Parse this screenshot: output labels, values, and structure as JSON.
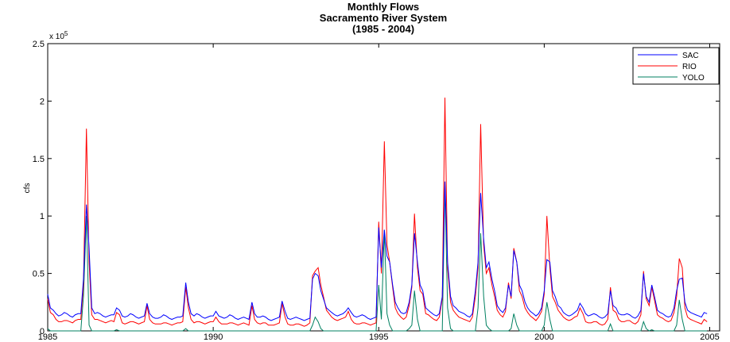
{
  "chart_data": {
    "type": "line",
    "title_lines": [
      "Monthly Flows",
      "Sacramento River System",
      "(1985 - 2004)"
    ],
    "y_label": "cfs",
    "y_multiplier": {
      "base": "x 10",
      "exponent": "5"
    },
    "xlim": [
      1985,
      2005.3
    ],
    "xticks": [
      1985,
      1990,
      1995,
      2000,
      2005
    ],
    "ylim": [
      0,
      2.5
    ],
    "yticks": [
      0,
      0.5,
      1,
      1.5,
      2,
      2.5
    ],
    "legend": "top-right",
    "grid": false,
    "x": [
      1985,
      1985.08,
      1985.17,
      1985.25,
      1985.33,
      1985.42,
      1985.5,
      1985.58,
      1985.67,
      1985.75,
      1985.83,
      1985.92,
      1986,
      1986.08,
      1986.17,
      1986.25,
      1986.33,
      1986.42,
      1986.5,
      1986.58,
      1986.67,
      1986.75,
      1986.83,
      1986.92,
      1987,
      1987.08,
      1987.17,
      1987.25,
      1987.33,
      1987.42,
      1987.5,
      1987.58,
      1987.67,
      1987.75,
      1987.83,
      1987.92,
      1988,
      1988.08,
      1988.17,
      1988.25,
      1988.33,
      1988.42,
      1988.5,
      1988.58,
      1988.67,
      1988.75,
      1988.83,
      1988.92,
      1989,
      1989.08,
      1989.17,
      1989.25,
      1989.33,
      1989.42,
      1989.5,
      1989.58,
      1989.67,
      1989.75,
      1989.83,
      1989.92,
      1990,
      1990.08,
      1990.17,
      1990.25,
      1990.33,
      1990.42,
      1990.5,
      1990.58,
      1990.67,
      1990.75,
      1990.83,
      1990.92,
      1991,
      1991.08,
      1991.17,
      1991.25,
      1991.33,
      1991.42,
      1991.5,
      1991.58,
      1991.67,
      1991.75,
      1991.83,
      1991.92,
      1992,
      1992.08,
      1992.17,
      1992.25,
      1992.33,
      1992.42,
      1992.5,
      1992.58,
      1992.67,
      1992.75,
      1992.83,
      1992.92,
      1993,
      1993.08,
      1993.17,
      1993.25,
      1993.33,
      1993.42,
      1993.5,
      1993.58,
      1993.67,
      1993.75,
      1993.83,
      1993.92,
      1994,
      1994.08,
      1994.17,
      1994.25,
      1994.33,
      1994.42,
      1994.5,
      1994.58,
      1994.67,
      1994.75,
      1994.83,
      1994.92,
      1995,
      1995.08,
      1995.17,
      1995.25,
      1995.33,
      1995.42,
      1995.5,
      1995.58,
      1995.67,
      1995.75,
      1995.83,
      1995.92,
      1996,
      1996.08,
      1996.17,
      1996.25,
      1996.33,
      1996.42,
      1996.5,
      1996.58,
      1996.67,
      1996.75,
      1996.83,
      1996.92,
      1997,
      1997.08,
      1997.17,
      1997.25,
      1997.33,
      1997.42,
      1997.5,
      1997.58,
      1997.67,
      1997.75,
      1997.83,
      1997.92,
      1998,
      1998.08,
      1998.17,
      1998.25,
      1998.33,
      1998.42,
      1998.5,
      1998.58,
      1998.67,
      1998.75,
      1998.83,
      1998.92,
      1999,
      1999.08,
      1999.17,
      1999.25,
      1999.33,
      1999.42,
      1999.5,
      1999.58,
      1999.67,
      1999.75,
      1999.83,
      1999.92,
      2000,
      2000.08,
      2000.17,
      2000.25,
      2000.33,
      2000.42,
      2000.5,
      2000.58,
      2000.67,
      2000.75,
      2000.83,
      2000.92,
      2001,
      2001.08,
      2001.17,
      2001.25,
      2001.33,
      2001.42,
      2001.5,
      2001.58,
      2001.67,
      2001.75,
      2001.83,
      2001.92,
      2002,
      2002.08,
      2002.17,
      2002.25,
      2002.33,
      2002.42,
      2002.5,
      2002.58,
      2002.67,
      2002.75,
      2002.83,
      2002.92,
      2003,
      2003.08,
      2003.17,
      2003.25,
      2003.33,
      2003.42,
      2003.5,
      2003.58,
      2003.67,
      2003.75,
      2003.83,
      2003.92,
      2004,
      2004.08,
      2004.17,
      2004.25,
      2004.33,
      2004.42,
      2004.5,
      2004.58,
      2004.67,
      2004.75,
      2004.83,
      2004.92
    ],
    "series": [
      {
        "name": "SAC",
        "color": "#0000ff",
        "values": [
          0.32,
          0.2,
          0.18,
          0.15,
          0.13,
          0.14,
          0.16,
          0.15,
          0.13,
          0.12,
          0.14,
          0.15,
          0.15,
          0.45,
          1.1,
          0.72,
          0.2,
          0.15,
          0.16,
          0.15,
          0.13,
          0.12,
          0.13,
          0.14,
          0.14,
          0.2,
          0.18,
          0.13,
          0.12,
          0.13,
          0.15,
          0.14,
          0.12,
          0.11,
          0.12,
          0.13,
          0.24,
          0.15,
          0.12,
          0.11,
          0.11,
          0.12,
          0.14,
          0.13,
          0.11,
          0.1,
          0.11,
          0.12,
          0.12,
          0.13,
          0.42,
          0.25,
          0.15,
          0.13,
          0.15,
          0.14,
          0.12,
          0.11,
          0.12,
          0.13,
          0.13,
          0.17,
          0.13,
          0.12,
          0.11,
          0.12,
          0.14,
          0.13,
          0.11,
          0.1,
          0.11,
          0.12,
          0.11,
          0.1,
          0.25,
          0.15,
          0.12,
          0.12,
          0.13,
          0.12,
          0.1,
          0.09,
          0.1,
          0.11,
          0.12,
          0.26,
          0.17,
          0.11,
          0.1,
          0.11,
          0.12,
          0.11,
          0.1,
          0.09,
          0.1,
          0.11,
          0.45,
          0.5,
          0.48,
          0.35,
          0.28,
          0.2,
          0.18,
          0.16,
          0.14,
          0.13,
          0.14,
          0.15,
          0.17,
          0.2,
          0.16,
          0.13,
          0.12,
          0.13,
          0.14,
          0.13,
          0.11,
          0.1,
          0.11,
          0.12,
          0.9,
          0.55,
          0.88,
          0.65,
          0.6,
          0.4,
          0.25,
          0.2,
          0.16,
          0.15,
          0.16,
          0.25,
          0.4,
          0.85,
          0.6,
          0.4,
          0.35,
          0.2,
          0.18,
          0.16,
          0.14,
          0.13,
          0.15,
          0.3,
          1.3,
          0.6,
          0.3,
          0.22,
          0.2,
          0.17,
          0.16,
          0.15,
          0.13,
          0.12,
          0.15,
          0.35,
          0.6,
          1.2,
          0.8,
          0.55,
          0.6,
          0.45,
          0.35,
          0.22,
          0.18,
          0.16,
          0.2,
          0.4,
          0.3,
          0.7,
          0.6,
          0.4,
          0.35,
          0.25,
          0.2,
          0.17,
          0.15,
          0.13,
          0.15,
          0.2,
          0.35,
          0.62,
          0.6,
          0.35,
          0.3,
          0.22,
          0.2,
          0.16,
          0.14,
          0.13,
          0.14,
          0.16,
          0.18,
          0.24,
          0.2,
          0.15,
          0.13,
          0.14,
          0.15,
          0.14,
          0.12,
          0.11,
          0.12,
          0.15,
          0.35,
          0.22,
          0.2,
          0.15,
          0.14,
          0.14,
          0.15,
          0.14,
          0.12,
          0.11,
          0.13,
          0.18,
          0.5,
          0.3,
          0.25,
          0.4,
          0.3,
          0.18,
          0.16,
          0.15,
          0.13,
          0.12,
          0.13,
          0.2,
          0.35,
          0.45,
          0.46,
          0.25,
          0.18,
          0.16,
          0.15,
          0.14,
          0.13,
          0.12,
          0.16,
          0.15
        ]
      },
      {
        "name": "RIO",
        "color": "#ff0000",
        "values": [
          0.28,
          0.16,
          0.14,
          0.1,
          0.08,
          0.08,
          0.09,
          0.09,
          0.08,
          0.07,
          0.09,
          0.1,
          0.1,
          0.4,
          1.76,
          0.6,
          0.14,
          0.1,
          0.1,
          0.09,
          0.08,
          0.07,
          0.08,
          0.09,
          0.08,
          0.16,
          0.14,
          0.07,
          0.06,
          0.07,
          0.08,
          0.08,
          0.07,
          0.06,
          0.07,
          0.08,
          0.22,
          0.1,
          0.07,
          0.06,
          0.06,
          0.06,
          0.07,
          0.07,
          0.06,
          0.05,
          0.06,
          0.07,
          0.07,
          0.08,
          0.38,
          0.2,
          0.1,
          0.07,
          0.08,
          0.08,
          0.07,
          0.06,
          0.07,
          0.08,
          0.08,
          0.12,
          0.08,
          0.06,
          0.06,
          0.06,
          0.07,
          0.07,
          0.06,
          0.05,
          0.06,
          0.07,
          0.06,
          0.05,
          0.22,
          0.1,
          0.07,
          0.06,
          0.07,
          0.07,
          0.05,
          0.05,
          0.05,
          0.06,
          0.07,
          0.24,
          0.12,
          0.06,
          0.05,
          0.05,
          0.06,
          0.06,
          0.05,
          0.04,
          0.05,
          0.07,
          0.48,
          0.52,
          0.55,
          0.4,
          0.3,
          0.18,
          0.15,
          0.12,
          0.1,
          0.09,
          0.1,
          0.11,
          0.12,
          0.17,
          0.1,
          0.07,
          0.06,
          0.06,
          0.07,
          0.07,
          0.06,
          0.05,
          0.06,
          0.07,
          0.95,
          0.5,
          1.65,
          0.75,
          0.6,
          0.38,
          0.2,
          0.15,
          0.12,
          0.1,
          0.12,
          0.22,
          0.38,
          1.02,
          0.55,
          0.35,
          0.32,
          0.15,
          0.14,
          0.12,
          0.1,
          0.09,
          0.12,
          0.28,
          2.03,
          0.55,
          0.25,
          0.18,
          0.15,
          0.12,
          0.11,
          0.1,
          0.09,
          0.08,
          0.12,
          0.3,
          0.55,
          1.8,
          0.75,
          0.5,
          0.55,
          0.4,
          0.3,
          0.18,
          0.14,
          0.12,
          0.17,
          0.42,
          0.28,
          0.72,
          0.6,
          0.35,
          0.3,
          0.2,
          0.16,
          0.13,
          0.11,
          0.09,
          0.12,
          0.17,
          0.32,
          1.0,
          0.55,
          0.3,
          0.25,
          0.18,
          0.15,
          0.12,
          0.1,
          0.09,
          0.1,
          0.12,
          0.13,
          0.2,
          0.15,
          0.08,
          0.07,
          0.07,
          0.08,
          0.08,
          0.06,
          0.05,
          0.06,
          0.1,
          0.38,
          0.18,
          0.16,
          0.1,
          0.08,
          0.08,
          0.09,
          0.09,
          0.07,
          0.06,
          0.08,
          0.14,
          0.52,
          0.28,
          0.22,
          0.38,
          0.27,
          0.14,
          0.12,
          0.11,
          0.09,
          0.08,
          0.09,
          0.16,
          0.3,
          0.63,
          0.55,
          0.2,
          0.12,
          0.1,
          0.09,
          0.08,
          0.07,
          0.06,
          0.1,
          0.08
        ]
      },
      {
        "name": "YOLO",
        "color": "#008060",
        "values": [
          0.02,
          0,
          0,
          0,
          0,
          0,
          0,
          0,
          0,
          0,
          0,
          0,
          0,
          0.3,
          1.0,
          0.05,
          0,
          0,
          0,
          0,
          0,
          0,
          0,
          0,
          0,
          0.01,
          0,
          0,
          0,
          0,
          0,
          0,
          0,
          0,
          0,
          0,
          0,
          0,
          0,
          0,
          0,
          0,
          0,
          0,
          0,
          0,
          0,
          0,
          0,
          0,
          0.02,
          0,
          0,
          0,
          0,
          0,
          0,
          0,
          0,
          0,
          0,
          0,
          0,
          0,
          0,
          0,
          0,
          0,
          0,
          0,
          0,
          0,
          0,
          0,
          0,
          0,
          0,
          0,
          0,
          0,
          0,
          0,
          0,
          0,
          0,
          0,
          0,
          0,
          0,
          0,
          0,
          0,
          0,
          0,
          0,
          0,
          0.05,
          0.12,
          0.08,
          0.02,
          0,
          0,
          0,
          0,
          0,
          0,
          0,
          0,
          0,
          0,
          0,
          0,
          0,
          0,
          0,
          0,
          0,
          0,
          0,
          0,
          0.4,
          0.1,
          0.88,
          0.15,
          0.05,
          0,
          0,
          0,
          0,
          0,
          0,
          0.02,
          0.05,
          0.35,
          0.1,
          0,
          0,
          0,
          0,
          0,
          0,
          0,
          0,
          0,
          1.27,
          0.2,
          0.02,
          0,
          0,
          0,
          0,
          0,
          0,
          0,
          0,
          0,
          0.2,
          0.85,
          0.3,
          0.05,
          0.02,
          0,
          0,
          0,
          0,
          0,
          0,
          0,
          0.02,
          0.15,
          0.05,
          0,
          0,
          0,
          0,
          0,
          0,
          0,
          0,
          0,
          0.05,
          0.25,
          0.1,
          0,
          0,
          0,
          0,
          0,
          0,
          0,
          0,
          0,
          0,
          0,
          0,
          0,
          0,
          0,
          0,
          0,
          0,
          0,
          0,
          0,
          0.06,
          0,
          0,
          0,
          0,
          0,
          0,
          0,
          0,
          0,
          0,
          0,
          0.08,
          0.02,
          0,
          0.01,
          0,
          0,
          0,
          0,
          0,
          0,
          0,
          0,
          0.05,
          0.27,
          0.1,
          0,
          0,
          0,
          0,
          0,
          0,
          0,
          0,
          0
        ]
      }
    ]
  }
}
